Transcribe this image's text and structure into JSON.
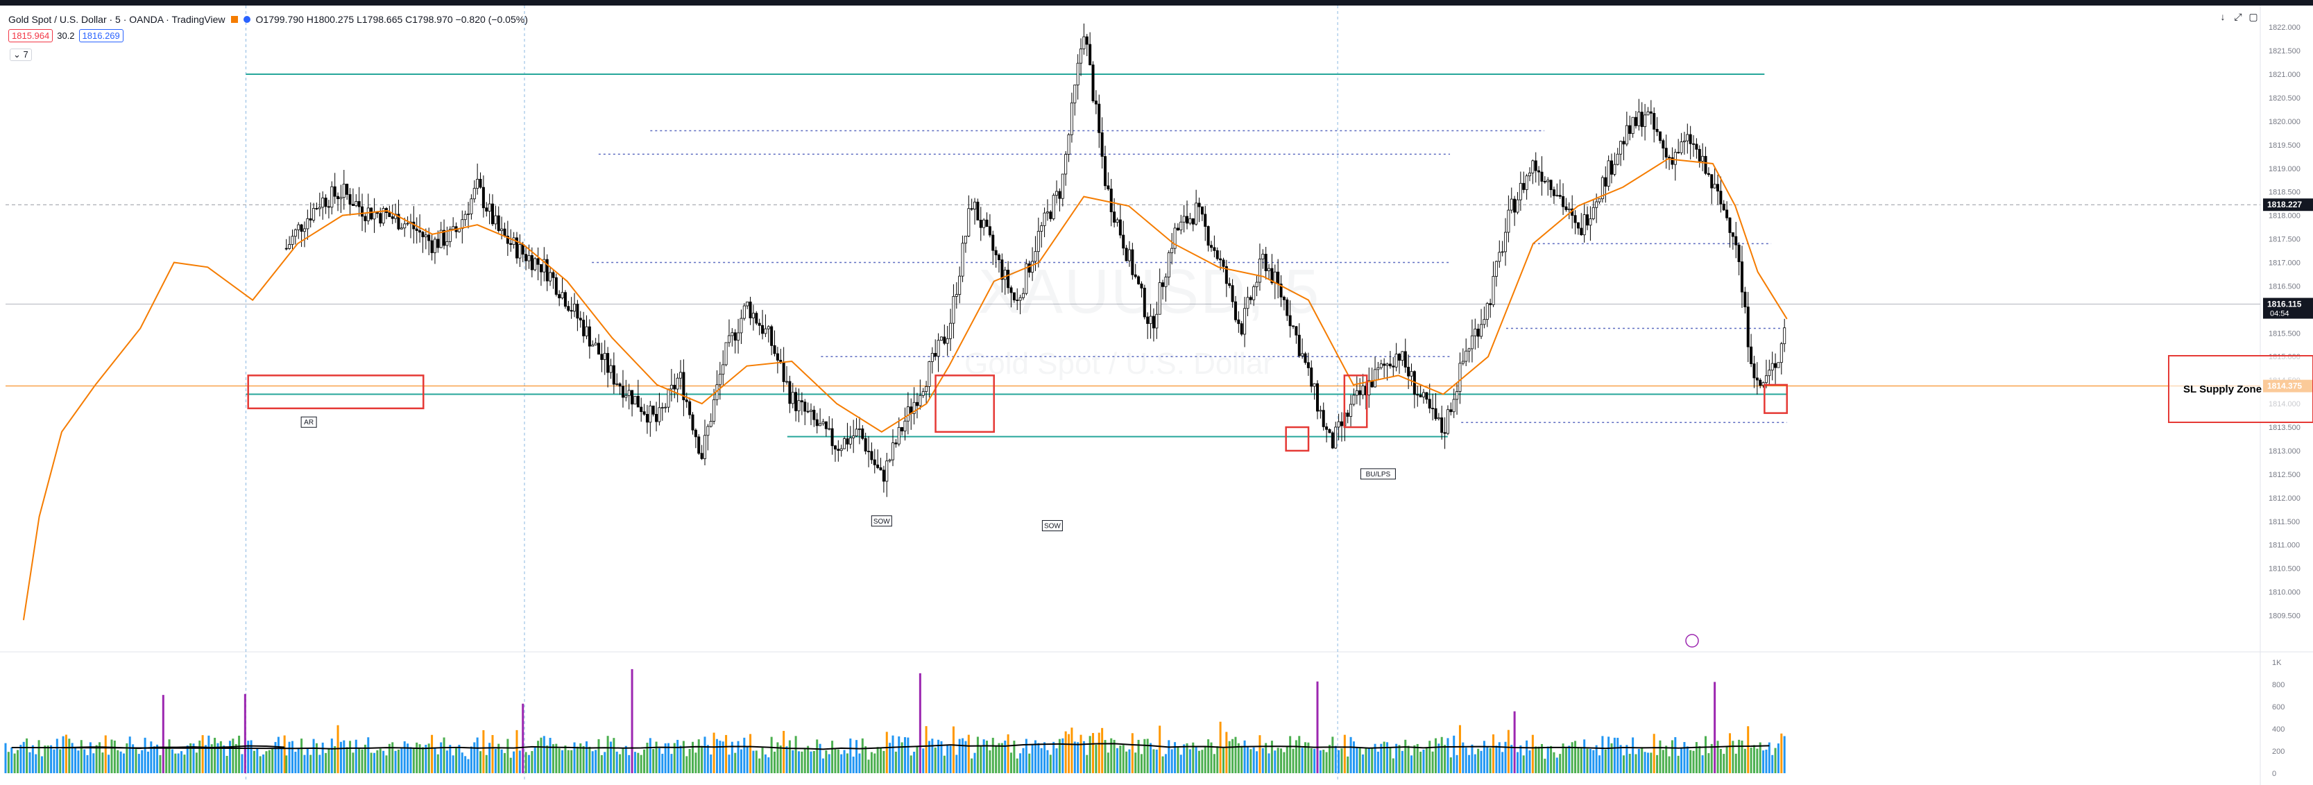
{
  "header": {
    "symbol_title": "Gold Spot / U.S. Dollar · 5 · OANDA · TradingView",
    "ohlc": "O1799.790 H1800.275 L1798.665 C1798.970 −0.820 (−0.05%)",
    "sell_price": "1815.964",
    "spread": "30.2",
    "buy_price": "1816.269",
    "collapse_label": "7",
    "window_controls": [
      "↓",
      "⤢",
      "▢"
    ]
  },
  "watermark": {
    "symbol": "XAUUSD, 5",
    "name": "Gold Spot / U.S. Dollar"
  },
  "colors": {
    "up_candle": "#ffffff",
    "down_candle": "#000000",
    "ma_line": "#f57c00",
    "support_line": "#26a69a",
    "dotted_level": "#5c6bc0",
    "highlight_box": "#e53935",
    "current_price_bg": "#131722",
    "orange_price_bg": "#f57c00"
  },
  "chart_data": {
    "type": "candlestick",
    "title": "",
    "xlabel": "",
    "ylabel": "",
    "ylim": [
      1808.8,
      1822.4
    ],
    "y_ticks": [
      "1822.000",
      "1821.500",
      "1821.000",
      "1820.500",
      "1820.000",
      "1819.500",
      "1819.000",
      "1818.500",
      "1818.000",
      "1817.500",
      "1817.000",
      "1816.500",
      "1816.000",
      "1815.500",
      "1815.000",
      "1814.500",
      "1814.000",
      "1813.500",
      "1813.000",
      "1812.500",
      "1812.000",
      "1811.500",
      "1811.000",
      "1810.500",
      "1810.000",
      "1809.500"
    ],
    "price_labels": [
      {
        "value": 1818.227,
        "text": "1818.227",
        "style": "dark"
      },
      {
        "value": 1816.115,
        "text": "1816.115",
        "sub": "04:54",
        "style": "dark"
      },
      {
        "value": 1814.375,
        "text": "1814.375",
        "style": "orange"
      }
    ],
    "close_path": [
      [
        0.0,
        1808.8
      ],
      [
        0.01,
        1811.2
      ],
      [
        0.015,
        1815.0
      ],
      [
        0.02,
        1816.6
      ],
      [
        0.025,
        1818.6
      ],
      [
        0.03,
        1816.4
      ],
      [
        0.04,
        1815.2
      ],
      [
        0.05,
        1815.8
      ],
      [
        0.06,
        1818.6
      ],
      [
        0.07,
        1819.6
      ],
      [
        0.08,
        1818.2
      ],
      [
        0.09,
        1815.2
      ],
      [
        0.1,
        1814.6
      ],
      [
        0.11,
        1815.6
      ],
      [
        0.12,
        1816.9
      ],
      [
        0.13,
        1817.7
      ],
      [
        0.14,
        1818.3
      ],
      [
        0.15,
        1818.5
      ],
      [
        0.16,
        1818.1
      ],
      [
        0.17,
        1818.0
      ],
      [
        0.18,
        1817.8
      ],
      [
        0.19,
        1817.4
      ],
      [
        0.2,
        1817.6
      ],
      [
        0.21,
        1818.6
      ],
      [
        0.22,
        1817.6
      ],
      [
        0.23,
        1817.2
      ],
      [
        0.24,
        1816.9
      ],
      [
        0.25,
        1816.2
      ],
      [
        0.26,
        1815.4
      ],
      [
        0.27,
        1814.6
      ],
      [
        0.28,
        1814.1
      ],
      [
        0.29,
        1813.6
      ],
      [
        0.3,
        1814.6
      ],
      [
        0.31,
        1812.9
      ],
      [
        0.32,
        1815.0
      ],
      [
        0.33,
        1816.1
      ],
      [
        0.34,
        1815.4
      ],
      [
        0.35,
        1814.1
      ],
      [
        0.36,
        1813.6
      ],
      [
        0.37,
        1813.1
      ],
      [
        0.38,
        1813.4
      ],
      [
        0.39,
        1812.4
      ],
      [
        0.4,
        1813.6
      ],
      [
        0.41,
        1814.6
      ],
      [
        0.42,
        1815.6
      ],
      [
        0.43,
        1818.3
      ],
      [
        0.44,
        1817.2
      ],
      [
        0.45,
        1816.1
      ],
      [
        0.46,
        1817.6
      ],
      [
        0.47,
        1818.6
      ],
      [
        0.48,
        1822.0
      ],
      [
        0.49,
        1818.6
      ],
      [
        0.5,
        1817.1
      ],
      [
        0.51,
        1815.6
      ],
      [
        0.52,
        1817.6
      ],
      [
        0.53,
        1818.1
      ],
      [
        0.54,
        1817.1
      ],
      [
        0.55,
        1815.6
      ],
      [
        0.56,
        1817.1
      ],
      [
        0.57,
        1816.1
      ],
      [
        0.58,
        1814.6
      ],
      [
        0.59,
        1813.1
      ],
      [
        0.6,
        1814.0
      ],
      [
        0.61,
        1814.6
      ],
      [
        0.62,
        1815.1
      ],
      [
        0.63,
        1814.1
      ],
      [
        0.64,
        1813.4
      ],
      [
        0.65,
        1815.1
      ],
      [
        0.66,
        1816.1
      ],
      [
        0.67,
        1818.1
      ],
      [
        0.68,
        1819.1
      ],
      [
        0.69,
        1818.6
      ],
      [
        0.7,
        1817.6
      ],
      [
        0.71,
        1818.6
      ],
      [
        0.72,
        1819.6
      ],
      [
        0.73,
        1820.2
      ],
      [
        0.74,
        1819.2
      ],
      [
        0.75,
        1819.6
      ],
      [
        0.76,
        1818.6
      ],
      [
        0.77,
        1817.6
      ],
      [
        0.775,
        1815.6
      ],
      [
        0.78,
        1814.3
      ],
      [
        0.785,
        1814.6
      ],
      [
        0.79,
        1815.1
      ],
      [
        0.793,
        1816.1
      ]
    ],
    "moving_average": [
      [
        0.008,
        1809.4
      ],
      [
        0.015,
        1811.6
      ],
      [
        0.025,
        1813.4
      ],
      [
        0.04,
        1814.4
      ],
      [
        0.06,
        1815.6
      ],
      [
        0.075,
        1817.0
      ],
      [
        0.09,
        1816.9
      ],
      [
        0.11,
        1816.2
      ],
      [
        0.13,
        1817.4
      ],
      [
        0.15,
        1818.0
      ],
      [
        0.17,
        1818.1
      ],
      [
        0.19,
        1817.6
      ],
      [
        0.21,
        1817.8
      ],
      [
        0.23,
        1817.4
      ],
      [
        0.25,
        1816.6
      ],
      [
        0.27,
        1815.4
      ],
      [
        0.29,
        1814.4
      ],
      [
        0.31,
        1814.0
      ],
      [
        0.33,
        1814.8
      ],
      [
        0.35,
        1814.9
      ],
      [
        0.37,
        1814.0
      ],
      [
        0.39,
        1813.4
      ],
      [
        0.41,
        1814.0
      ],
      [
        0.42,
        1814.8
      ],
      [
        0.44,
        1816.6
      ],
      [
        0.46,
        1817.0
      ],
      [
        0.48,
        1818.4
      ],
      [
        0.5,
        1818.2
      ],
      [
        0.52,
        1817.4
      ],
      [
        0.54,
        1816.9
      ],
      [
        0.56,
        1816.7
      ],
      [
        0.58,
        1816.2
      ],
      [
        0.6,
        1814.4
      ],
      [
        0.62,
        1814.6
      ],
      [
        0.64,
        1814.2
      ],
      [
        0.66,
        1815.0
      ],
      [
        0.68,
        1817.4
      ],
      [
        0.7,
        1818.2
      ],
      [
        0.72,
        1818.6
      ],
      [
        0.74,
        1819.2
      ],
      [
        0.76,
        1819.1
      ],
      [
        0.77,
        1818.2
      ],
      [
        0.78,
        1816.8
      ],
      [
        0.793,
        1815.8
      ]
    ],
    "horizontal_levels": [
      {
        "y": 1821.0,
        "x": [
          0.107,
          0.783
        ],
        "style": "solid",
        "color": "support_line"
      },
      {
        "y": 1814.2,
        "x": [
          0.107,
          0.793
        ],
        "style": "solid",
        "color": "support_line"
      },
      {
        "y": 1813.3,
        "x": [
          0.348,
          0.642
        ],
        "style": "solid",
        "color": "support_line"
      },
      {
        "y": 1819.8,
        "x": [
          0.287,
          0.685
        ],
        "style": "dotted",
        "color": "dotted_level"
      },
      {
        "y": 1819.3,
        "x": [
          0.264,
          0.643
        ],
        "style": "dotted",
        "color": "dotted_level"
      },
      {
        "y": 1817.0,
        "x": [
          0.261,
          0.643
        ],
        "style": "dotted",
        "color": "dotted_level"
      },
      {
        "y": 1815.0,
        "x": [
          0.363,
          0.643
        ],
        "style": "dotted",
        "color": "dotted_level"
      },
      {
        "y": 1815.6,
        "x": [
          0.668,
          0.793
        ],
        "style": "dotted",
        "color": "dotted_level"
      },
      {
        "y": 1817.4,
        "x": [
          0.68,
          0.786
        ],
        "style": "dotted",
        "color": "dotted_level"
      },
      {
        "y": 1813.6,
        "x": [
          0.648,
          0.793
        ],
        "style": "dotted",
        "color": "dotted_level"
      }
    ],
    "boxes": [
      {
        "x": [
          0.108,
          0.186
        ],
        "y": [
          1813.9,
          1814.6
        ]
      },
      {
        "x": [
          0.414,
          0.44
        ],
        "y": [
          1813.4,
          1814.6
        ]
      },
      {
        "x": [
          0.57,
          0.58
        ],
        "y": [
          1813.0,
          1813.5
        ]
      },
      {
        "x": [
          0.596,
          0.606
        ],
        "y": [
          1813.5,
          1814.6
        ]
      },
      {
        "x": [
          0.783,
          0.793
        ],
        "y": [
          1813.8,
          1814.4
        ]
      }
    ],
    "annotations": [
      {
        "text": "AR",
        "x": 0.135,
        "y": 1813.6
      },
      {
        "text": "SOW",
        "x": 0.39,
        "y": 1811.5
      },
      {
        "text": "SOW",
        "x": 0.466,
        "y": 1811.4
      },
      {
        "text": "BU/LPS",
        "x": 0.611,
        "y": 1812.5
      }
    ],
    "volume": {
      "ylim": [
        0,
        1000
      ],
      "y_ticks": [
        "1K",
        "800",
        "600",
        "400",
        "200",
        "0"
      ]
    }
  },
  "zone_label": "SL Supply Zone"
}
